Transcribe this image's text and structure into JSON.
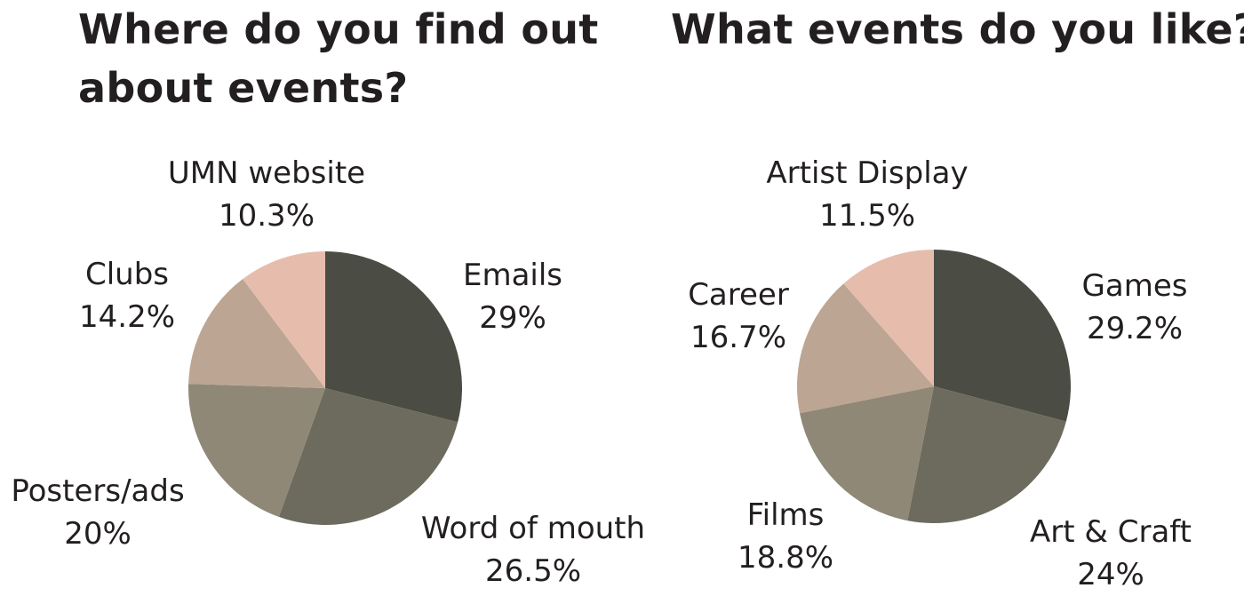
{
  "colors": {
    "slice_1": "#4b4c44",
    "slice_2": "#6c6b5d",
    "slice_3": "#8f8877",
    "slice_4": "#bca593",
    "slice_5": "#e6bdac",
    "text": "#231f20"
  },
  "chart_data": [
    {
      "type": "pie",
      "title": "Where do you find out about events?",
      "slices": [
        {
          "label": "Emails",
          "value": 29,
          "display": "29%"
        },
        {
          "label": "Word of mouth",
          "value": 26.5,
          "display": "26.5%"
        },
        {
          "label": "Posters/ads",
          "value": 20,
          "display": "20%"
        },
        {
          "label": "Clubs",
          "value": 14.2,
          "display": "14.2%"
        },
        {
          "label": "UMN website",
          "value": 10.3,
          "display": "10.3%"
        }
      ],
      "start": "12 o'clock",
      "direction": "clockwise"
    },
    {
      "type": "pie",
      "title": "What events do you like?",
      "slices": [
        {
          "label": "Games",
          "value": 29.2,
          "display": "29.2%"
        },
        {
          "label": "Art & Craft",
          "value": 24,
          "display": "24%"
        },
        {
          "label": "Films",
          "value": 18.8,
          "display": "18.8%"
        },
        {
          "label": "Career",
          "value": 16.7,
          "display": "16.7%"
        },
        {
          "label": "Artist Display",
          "value": 11.5,
          "display": "11.5%"
        }
      ],
      "start": "12 o'clock",
      "direction": "clockwise"
    }
  ]
}
